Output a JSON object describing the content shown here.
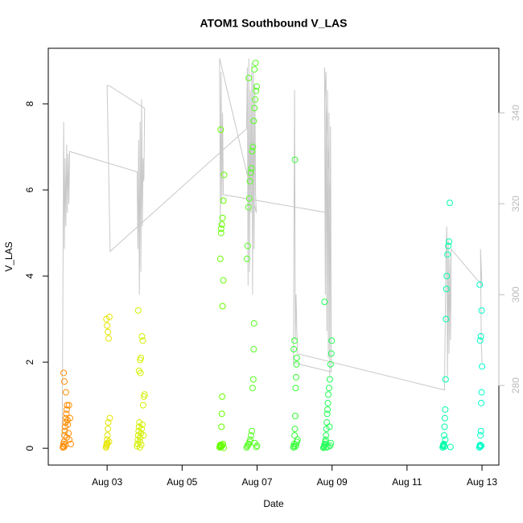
{
  "chart_data": {
    "type": "scatter",
    "title": "ATOM1 Southbound V_LAS",
    "x_label": "Date",
    "y_label": "V_LAS",
    "xlim": [
      1.43,
      13.45
    ],
    "ylim": [
      -0.39,
      9.29
    ],
    "y2lim": [
      262.5,
      354.2
    ],
    "xticks": [
      {
        "value": 3,
        "label": "Aug 03"
      },
      {
        "value": 5,
        "label": "Aug 05"
      },
      {
        "value": 7,
        "label": "Aug 07"
      },
      {
        "value": 9,
        "label": "Aug 09"
      },
      {
        "value": 11,
        "label": "Aug 11"
      },
      {
        "value": 13,
        "label": "Aug 13"
      }
    ],
    "yticks": [
      0,
      2,
      4,
      6,
      8
    ],
    "y2ticks": [
      280,
      300,
      320,
      340
    ],
    "y2_color": "#bbbbbb",
    "series": [
      {
        "type": "line",
        "axis": "y2",
        "color": "#c8c8c8",
        "x": [
          1.8,
          1.82,
          1.84,
          1.86,
          1.88,
          1.9,
          1.92,
          1.94,
          1.96,
          1.98,
          2.0,
          3.8,
          3.82,
          3.84,
          3.86,
          3.88,
          3.9,
          3.92,
          3.94,
          3.96,
          3.98,
          4.0,
          3.05,
          3.0,
          3.08,
          6.72,
          6.74,
          6.76,
          6.78,
          6.8,
          6.82,
          6.84,
          6.86,
          6.88,
          6.9,
          6.92,
          6.94,
          6.96,
          6.98,
          6.0,
          6.02,
          6.04,
          6.06,
          6.08,
          6.1,
          8.9,
          8.95,
          8.8,
          8.82,
          8.84,
          8.86,
          8.88,
          8.9,
          8.92,
          8.94,
          8.96,
          8.98,
          7.97,
          8.0,
          8.02,
          8.04,
          8.06,
          8.08,
          12.0,
          12.04,
          12.06,
          12.08,
          12.1,
          12.12,
          12.14,
          12.16,
          12.18,
          13.0,
          12.96,
          12.98,
          13.0
        ],
        "values": [
          267,
          300,
          338,
          310,
          330,
          315,
          333,
          318,
          331,
          320,
          331.5,
          327,
          310,
          334,
          300,
          338,
          305,
          343,
          315,
          330,
          325,
          341,
          346,
          346,
          309.5,
          336.5,
          350,
          302,
          352,
          305,
          345,
          318,
          351,
          300,
          349,
          310,
          346,
          322,
          318,
          352,
          315,
          349,
          320,
          340,
          322,
          318,
          320,
          350,
          300,
          349,
          292,
          345,
          286,
          340,
          282,
          337,
          283,
          285,
          345,
          290,
          300,
          292,
          287,
          279,
          310,
          315,
          282,
          312,
          287,
          308,
          290,
          310,
          302,
          310,
          290,
          285
        ]
      },
      {
        "type": "points",
        "color": "#ff8c00",
        "x": [
          1.82,
          1.83,
          1.84,
          1.85,
          1.86,
          1.87,
          1.88,
          1.89,
          1.9,
          1.91,
          1.92,
          1.93,
          1.95,
          1.97,
          1.99,
          2.01,
          2.03,
          1.84,
          1.86,
          1.9,
          1.94,
          1.98,
          1.85,
          1.88,
          1.92
        ],
        "values": [
          0.02,
          0.05,
          0.1,
          0.15,
          0.3,
          0.4,
          0.5,
          0.6,
          0.7,
          0.8,
          0.9,
          1.0,
          0.55,
          0.35,
          0.2,
          0.7,
          0.1,
          1.75,
          1.55,
          1.3,
          0.65,
          1.0,
          0.03,
          0.08,
          0.25
        ]
      },
      {
        "type": "points",
        "color": "#e6e600",
        "x": [
          2.97,
          2.98,
          2.99,
          3.0,
          3.01,
          3.02,
          3.03,
          3.05,
          3.07,
          2.98,
          3.0,
          3.02,
          3.04,
          3.06,
          2.99,
          3.01
        ],
        "values": [
          0.02,
          0.05,
          0.1,
          0.2,
          0.3,
          0.45,
          0.6,
          0.15,
          0.7,
          3.0,
          2.85,
          2.7,
          2.55,
          3.05,
          0.08,
          0.12
        ]
      },
      {
        "type": "points",
        "color": "#d4f000",
        "x": [
          3.8,
          3.81,
          3.82,
          3.83,
          3.84,
          3.85,
          3.86,
          3.87,
          3.88,
          3.9,
          3.92,
          3.94,
          3.96,
          3.98,
          4.0,
          3.85,
          3.88,
          3.9,
          3.93,
          3.95,
          3.83,
          3.87,
          3.91,
          3.97,
          3.89
        ],
        "values": [
          0.05,
          0.1,
          0.2,
          0.3,
          0.4,
          0.5,
          0.6,
          0.15,
          0.25,
          0.35,
          0.45,
          0.55,
          1.0,
          1.2,
          1.25,
          1.8,
          2.05,
          2.1,
          2.6,
          2.5,
          3.2,
          0.02,
          0.08,
          0.3,
          1.75
        ]
      },
      {
        "type": "points",
        "color": "#66ff00",
        "x": [
          6.0,
          6.01,
          6.02,
          6.03,
          6.04,
          6.05,
          6.06,
          6.07,
          6.08,
          6.1,
          6.02,
          6.04,
          6.06,
          6.08,
          6.1,
          6.12,
          6.03,
          6.05,
          6.07,
          6.09,
          6.11,
          6.04
        ],
        "values": [
          0.02,
          0.05,
          0.08,
          0.03,
          0.06,
          0.5,
          0.8,
          1.2,
          3.3,
          3.9,
          4.4,
          5.0,
          5.2,
          5.35,
          5.75,
          6.35,
          7.4,
          0.04,
          0.07,
          0.1,
          0.01,
          5.1
        ]
      },
      {
        "type": "points",
        "color": "#55ff22",
        "x": [
          6.72,
          6.74,
          6.76,
          6.78,
          6.8,
          6.82,
          6.84,
          6.86,
          6.88,
          6.9,
          6.91,
          6.92,
          6.73,
          6.75,
          6.77,
          6.79,
          6.81,
          6.83,
          6.85,
          6.87,
          6.89,
          6.91,
          6.93,
          6.95,
          6.97,
          6.99,
          6.78,
          6.93,
          6.96,
          6.98,
          7.0,
          6.94
        ],
        "values": [
          0.02,
          0.05,
          0.08,
          0.1,
          0.15,
          0.2,
          0.3,
          0.4,
          1.4,
          1.6,
          2.3,
          2.9,
          4.4,
          4.7,
          5.6,
          5.8,
          6.2,
          6.4,
          6.5,
          6.9,
          7.0,
          7.6,
          7.9,
          8.1,
          8.3,
          8.4,
          8.6,
          8.8,
          8.95,
          0.03,
          0.06,
          0.12
        ]
      },
      {
        "type": "points",
        "color": "#33ff33",
        "x": [
          7.97,
          7.98,
          7.99,
          8.0,
          8.01,
          8.02,
          8.03,
          8.04,
          8.05,
          8.06,
          7.98,
          8.0,
          8.02,
          8.04,
          8.06,
          8.08,
          8.01
        ],
        "values": [
          0.02,
          0.05,
          0.1,
          0.3,
          0.45,
          0.75,
          1.4,
          1.65,
          1.95,
          2.1,
          2.3,
          2.5,
          0.04,
          0.08,
          0.15,
          0.2,
          6.7
        ]
      },
      {
        "type": "points",
        "color": "#22ff55",
        "x": [
          8.77,
          8.78,
          8.79,
          8.8,
          8.81,
          8.82,
          8.83,
          8.84,
          8.85,
          8.86,
          8.87,
          8.88,
          8.89,
          8.9,
          8.92,
          8.94,
          8.96,
          8.98,
          8.99,
          8.8,
          8.85,
          8.9,
          8.95,
          8.97,
          8.93
        ],
        "values": [
          0.01,
          0.03,
          0.05,
          0.08,
          0.1,
          0.15,
          0.2,
          0.3,
          0.45,
          0.6,
          0.8,
          0.9,
          1.05,
          1.25,
          1.4,
          1.6,
          1.95,
          2.2,
          2.5,
          3.4,
          0.02,
          0.04,
          0.06,
          0.12,
          0.5
        ]
      },
      {
        "type": "points",
        "color": "#00ffaa",
        "x": [
          11.95,
          11.96,
          11.97,
          11.98,
          11.99,
          12.0,
          12.01,
          12.02,
          12.03,
          12.04,
          12.05,
          12.06,
          12.08,
          12.1,
          12.12,
          12.14,
          12.16,
          11.97,
          12.0,
          12.02
        ],
        "values": [
          0.02,
          0.05,
          0.08,
          0.1,
          0.3,
          0.5,
          0.7,
          0.9,
          1.6,
          3.0,
          3.7,
          4.0,
          4.5,
          4.7,
          4.8,
          5.7,
          0.03,
          0.06,
          0.04,
          0.2
        ]
      },
      {
        "type": "points",
        "color": "#00ffc8",
        "x": [
          12.93,
          12.94,
          12.95,
          12.96,
          12.97,
          12.98,
          12.99,
          13.0,
          12.95,
          12.97,
          12.99,
          12.94,
          12.96,
          12.98
        ],
        "values": [
          0.02,
          0.05,
          0.08,
          0.3,
          0.4,
          1.05,
          1.3,
          1.9,
          2.5,
          2.6,
          3.2,
          3.8,
          0.04,
          0.06
        ]
      }
    ]
  }
}
